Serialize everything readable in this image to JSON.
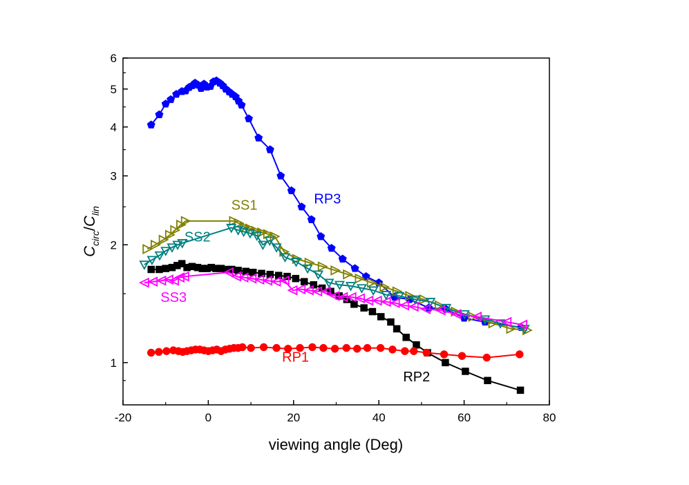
{
  "chart_data": {
    "type": "scatter",
    "xlabel": "viewing angle (Deg)",
    "ylabel_parts": {
      "C1": "C",
      "sub1": "circ",
      "slash": "/",
      "C2": "C",
      "sub2": "lin"
    },
    "xlim": [
      -20,
      80
    ],
    "ylim": [
      0.78,
      6.0
    ],
    "y_scale": "log",
    "x_ticks": [
      -20,
      0,
      20,
      40,
      60,
      80
    ],
    "y_ticks": [
      1,
      2,
      3,
      4,
      5,
      6
    ],
    "grid": false,
    "legend": "none",
    "series": [
      {
        "name": "RP3",
        "color": "#0000ff",
        "marker": "pentagon",
        "filled": true,
        "x": [
          -13.4,
          -11.5,
          -10,
          -8.8,
          -7.5,
          -6.2,
          -5.3,
          -4.5,
          -3.8,
          -3.1,
          -2.4,
          -1.7,
          -1,
          -0.3,
          0.5,
          1.2,
          1.9,
          2.7,
          3.4,
          4.1,
          4.9,
          5.6,
          6.4,
          7.1,
          7.8,
          9.5,
          11.8,
          14.5,
          17,
          19.5,
          21.9,
          24.2,
          26.4,
          28.9,
          31.5,
          34.4,
          37,
          40,
          43.7,
          47.2,
          51.7,
          55.7,
          60,
          64.9,
          73.4
        ],
        "y": [
          4.05,
          4.3,
          4.58,
          4.7,
          4.85,
          4.93,
          4.95,
          5.05,
          5.1,
          5.18,
          5.12,
          5.02,
          5.15,
          5.06,
          5.08,
          5.22,
          5.25,
          5.18,
          5.1,
          5.0,
          4.92,
          4.85,
          4.78,
          4.66,
          4.55,
          4.2,
          3.75,
          3.5,
          3.0,
          2.75,
          2.5,
          2.32,
          2.1,
          1.96,
          1.84,
          1.74,
          1.66,
          1.6,
          1.47,
          1.45,
          1.38,
          1.37,
          1.3,
          1.27,
          1.23
        ]
      },
      {
        "name": "RP2",
        "color": "#000000",
        "marker": "square",
        "filled": true,
        "x": [
          -13.4,
          -11.5,
          -10,
          -8.5,
          -7.3,
          -6.2,
          -5,
          -3.8,
          -2.5,
          -1.4,
          -0.3,
          0.7,
          1.8,
          3,
          4.2,
          5.5,
          7,
          8.8,
          10.5,
          12.5,
          14.5,
          16.5,
          18.5,
          20.5,
          22.5,
          24.7,
          26.7,
          28.7,
          30.7,
          32.5,
          34.2,
          36.5,
          38.5,
          40.5,
          42.8,
          44.2,
          46.4,
          48.8,
          51.4,
          55.6,
          60.3,
          65.5,
          73.2
        ],
        "y": [
          1.73,
          1.73,
          1.74,
          1.75,
          1.77,
          1.79,
          1.75,
          1.76,
          1.75,
          1.74,
          1.74,
          1.75,
          1.74,
          1.74,
          1.73,
          1.73,
          1.72,
          1.71,
          1.7,
          1.69,
          1.68,
          1.67,
          1.66,
          1.64,
          1.61,
          1.58,
          1.55,
          1.52,
          1.48,
          1.45,
          1.41,
          1.38,
          1.35,
          1.31,
          1.27,
          1.22,
          1.16,
          1.11,
          1.06,
          1.0,
          0.95,
          0.9,
          0.85
        ]
      },
      {
        "name": "RP1",
        "color": "#ff0000",
        "marker": "circle",
        "filled": true,
        "x": [
          -13.4,
          -11.6,
          -9.8,
          -8.2,
          -7,
          -6,
          -5,
          -4,
          -3,
          -2,
          -1,
          0,
          1,
          2,
          3,
          4,
          5,
          6,
          7,
          8,
          10,
          13,
          16,
          18.7,
          21.5,
          24.4,
          27,
          29.7,
          32.4,
          34.9,
          37.3,
          40.4,
          43.2,
          46.1,
          48.2,
          51.2,
          55.3,
          59.5,
          65.3,
          73
        ],
        "y": [
          1.06,
          1.065,
          1.07,
          1.075,
          1.07,
          1.065,
          1.07,
          1.075,
          1.08,
          1.08,
          1.075,
          1.07,
          1.075,
          1.08,
          1.07,
          1.08,
          1.085,
          1.09,
          1.09,
          1.095,
          1.09,
          1.095,
          1.09,
          1.085,
          1.09,
          1.095,
          1.09,
          1.085,
          1.09,
          1.085,
          1.09,
          1.09,
          1.08,
          1.07,
          1.07,
          1.06,
          1.05,
          1.04,
          1.03,
          1.05
        ]
      },
      {
        "name": "SS1",
        "color": "#808000",
        "marker": "triangle-right",
        "filled": false,
        "x": [
          -14.3,
          -12.4,
          -10.5,
          -9,
          -7.8,
          -6.4,
          -5.3,
          6,
          7.2,
          8.5,
          9.8,
          11.2,
          12.6,
          14,
          15.6,
          17.8,
          20.8,
          23.7,
          26.8,
          29.8,
          32.7,
          35.5,
          38.3,
          41.3,
          44.3,
          47.3,
          50.6,
          54.2,
          58,
          62.1,
          66.8,
          71,
          74.8
        ],
        "y": [
          1.95,
          2.0,
          2.06,
          2.12,
          2.18,
          2.25,
          2.3,
          2.3,
          2.27,
          2.22,
          2.2,
          2.17,
          2.15,
          2.13,
          2.1,
          1.92,
          1.84,
          1.8,
          1.76,
          1.72,
          1.68,
          1.64,
          1.6,
          1.56,
          1.52,
          1.48,
          1.45,
          1.4,
          1.35,
          1.31,
          1.26,
          1.22,
          1.21
        ]
      },
      {
        "name": "SS2",
        "color": "#008080",
        "marker": "triangle-down",
        "filled": false,
        "x": [
          -15,
          -13.2,
          -11.4,
          -10,
          -8.5,
          -7.2,
          -6.1,
          5.4,
          7,
          8.3,
          9.8,
          11.4,
          12.8,
          14.4,
          16,
          18,
          20.6,
          23.3,
          25.8,
          28.3,
          30.8,
          33.4,
          36,
          38.7,
          41.7,
          44.8,
          48.5,
          52.1,
          55.8,
          60.1,
          64.9,
          68.5,
          74.2
        ],
        "y": [
          1.78,
          1.83,
          1.88,
          1.93,
          1.97,
          2.0,
          2.02,
          2.21,
          2.18,
          2.16,
          2.14,
          2.11,
          2.0,
          2.05,
          1.97,
          1.86,
          1.81,
          1.74,
          1.68,
          1.6,
          1.58,
          1.57,
          1.55,
          1.53,
          1.49,
          1.48,
          1.45,
          1.43,
          1.38,
          1.33,
          1.29,
          1.26,
          1.22
        ]
      },
      {
        "name": "SS3",
        "color": "#ff00ff",
        "marker": "triangle-left",
        "filled": false,
        "x": [
          -15,
          -13,
          -11,
          -9.3,
          -8,
          -6.7,
          -5.6,
          4.8,
          6.6,
          8.3,
          10.2,
          12,
          13.9,
          15.9,
          17.9,
          19.8,
          21.7,
          23.6,
          25.6,
          27.6,
          29.7,
          31.6,
          33.6,
          35.6,
          37.6,
          39.6,
          41.7,
          43.8,
          46,
          48.2,
          51,
          54.5,
          58.2,
          63,
          70,
          73.7
        ],
        "y": [
          1.6,
          1.61,
          1.62,
          1.63,
          1.62,
          1.65,
          1.66,
          1.7,
          1.66,
          1.65,
          1.64,
          1.63,
          1.62,
          1.61,
          1.62,
          1.53,
          1.54,
          1.53,
          1.52,
          1.52,
          1.48,
          1.47,
          1.47,
          1.46,
          1.44,
          1.44,
          1.43,
          1.42,
          1.4,
          1.39,
          1.37,
          1.36,
          1.33,
          1.31,
          1.27,
          1.25
        ]
      }
    ],
    "annotations": [
      {
        "text": "RP3",
        "x": 24.8,
        "y": 2.55,
        "color": "#0000ff"
      },
      {
        "text": "RP2",
        "x": 45.7,
        "y": 0.895,
        "color": "#000000"
      },
      {
        "text": "RP1",
        "x": 17.3,
        "y": 1.005,
        "color": "#ff0000"
      },
      {
        "text": "SS1",
        "x": 5.4,
        "y": 2.46,
        "color": "#808000"
      },
      {
        "text": "SS2",
        "x": -5.6,
        "y": 2.04,
        "color": "#008080"
      },
      {
        "text": "SS3",
        "x": -11.2,
        "y": 1.43,
        "color": "#ff00ff"
      }
    ]
  }
}
